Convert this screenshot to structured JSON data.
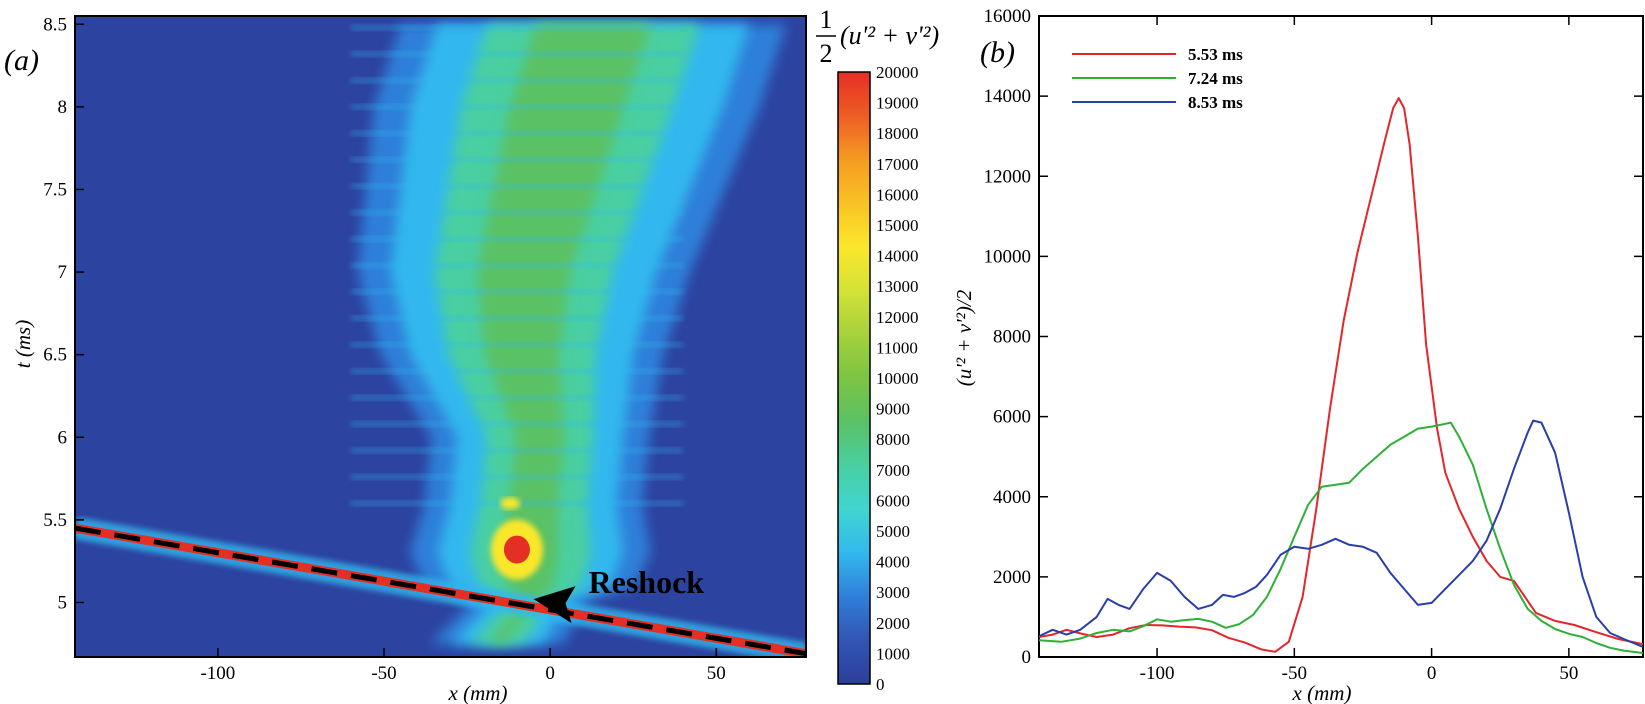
{
  "chart_data": [
    {
      "type": "heatmap",
      "panel_label": "(a)",
      "xlabel": "x (mm)",
      "ylabel": "t (ms)",
      "xlim": [
        -143,
        77
      ],
      "ylim": [
        4.67,
        8.55
      ],
      "x_ticks": [
        -100,
        -50,
        0,
        50
      ],
      "x_tick_labels": [
        "-100",
        "-50",
        "0",
        "50"
      ],
      "y_ticks": [
        5,
        5.5,
        6,
        6.5,
        7,
        7.5,
        8,
        8.5
      ],
      "y_tick_labels": [
        "5",
        "5.5",
        "6",
        "6.5",
        "7",
        "7.5",
        "8",
        "8.5"
      ],
      "colorbar": {
        "title_prefix": "1",
        "title_denominator": "2",
        "title_expr": "(u'² + v'²)",
        "min": 0,
        "max": 20000,
        "tick_labels": [
          "0",
          "1000",
          "2000",
          "3000",
          "4000",
          "5000",
          "6000",
          "7000",
          "8000",
          "9000",
          "10000",
          "11000",
          "12000",
          "13000",
          "14000",
          "15000",
          "16000",
          "17000",
          "18000",
          "19000",
          "20000"
        ],
        "colors": [
          "#2c3e99",
          "#3355b5",
          "#2f7fd9",
          "#33b8ee",
          "#3fd6d0",
          "#49cfa1",
          "#5ac165",
          "#7cc443",
          "#a6d13c",
          "#d4e236",
          "#fbe72c",
          "#f9c224",
          "#f59b22",
          "#ee5d24",
          "#e52f25"
        ]
      },
      "shock_line": {
        "x": [
          -143,
          77
        ],
        "t": [
          5.45,
          4.69
        ]
      },
      "annotation": {
        "text": "Reshock",
        "x": -5,
        "t": 5.02
      },
      "mixing_zone": {
        "t": [
          4.75,
          5.0,
          5.1,
          5.3,
          5.6,
          6.0,
          6.5,
          7.0,
          7.5,
          8.0,
          8.5
        ],
        "left": [
          -30,
          -18,
          -30,
          -34,
          -30,
          -28,
          -42,
          -48,
          -45,
          -42,
          -34
        ],
        "right": [
          -2,
          5,
          18,
          22,
          20,
          22,
          25,
          32,
          42,
          52,
          60
        ]
      }
    },
    {
      "type": "line",
      "panel_label": "(b)",
      "xlabel": "x (mm)",
      "ylabel": "(u'² + v'²)/2",
      "xlim": [
        -143,
        77
      ],
      "ylim": [
        0,
        16000
      ],
      "x_ticks": [
        -100,
        -50,
        0,
        50
      ],
      "x_tick_labels": [
        "-100",
        "-50",
        "0",
        "50"
      ],
      "y_ticks": [
        0,
        2000,
        4000,
        6000,
        8000,
        10000,
        12000,
        14000,
        16000
      ],
      "y_tick_labels": [
        "0",
        "2000",
        "4000",
        "6000",
        "8000",
        "10000",
        "12000",
        "14000",
        "16000"
      ],
      "legend_position": "top-left",
      "series": [
        {
          "name": "5.53 ms",
          "color": "#e3262a",
          "x": [
            -143,
            -138,
            -133,
            -128,
            -122,
            -116,
            -110,
            -104,
            -98,
            -92,
            -86,
            -80,
            -74,
            -68,
            -62,
            -57,
            -52,
            -47,
            -42,
            -37,
            -32,
            -27,
            -22,
            -17,
            -14,
            -12,
            -10,
            -8,
            -5,
            -2,
            2,
            5,
            10,
            15,
            20,
            25,
            30,
            33,
            38,
            45,
            52,
            60,
            68,
            77
          ],
          "y": [
            500,
            560,
            680,
            590,
            500,
            560,
            720,
            800,
            790,
            760,
            740,
            670,
            480,
            360,
            190,
            130,
            380,
            1500,
            3700,
            6200,
            8400,
            10100,
            11500,
            12900,
            13700,
            13950,
            13700,
            12800,
            10500,
            7800,
            5700,
            4600,
            3700,
            3000,
            2400,
            2000,
            1900,
            1600,
            1100,
            900,
            800,
            620,
            450,
            320
          ]
        },
        {
          "name": "7.24 ms",
          "color": "#2eb037",
          "x": [
            -143,
            -135,
            -128,
            -122,
            -116,
            -110,
            -105,
            -100,
            -95,
            -90,
            -85,
            -80,
            -75,
            -70,
            -65,
            -60,
            -55,
            -50,
            -45,
            -40,
            -35,
            -30,
            -25,
            -20,
            -15,
            -10,
            -5,
            0,
            5,
            7,
            10,
            15,
            20,
            25,
            30,
            35,
            40,
            45,
            50,
            55,
            60,
            65,
            70,
            77
          ],
          "y": [
            420,
            380,
            460,
            600,
            680,
            640,
            770,
            940,
            880,
            920,
            950,
            880,
            730,
            820,
            1050,
            1500,
            2200,
            3000,
            3800,
            4250,
            4300,
            4350,
            4700,
            5000,
            5300,
            5500,
            5700,
            5750,
            5820,
            5850,
            5500,
            4800,
            3700,
            2700,
            1800,
            1200,
            900,
            700,
            580,
            500,
            350,
            230,
            160,
            100
          ]
        },
        {
          "name": "8.53 ms",
          "color": "#2a3ea8",
          "x": [
            -143,
            -138,
            -133,
            -128,
            -122,
            -118,
            -114,
            -110,
            -105,
            -100,
            -95,
            -90,
            -85,
            -80,
            -76,
            -72,
            -68,
            -64,
            -60,
            -55,
            -50,
            -45,
            -40,
            -35,
            -30,
            -25,
            -20,
            -15,
            -10,
            -5,
            0,
            5,
            10,
            15,
            20,
            25,
            30,
            35,
            37,
            40,
            45,
            50,
            55,
            60,
            65,
            70,
            77
          ],
          "y": [
            520,
            680,
            560,
            680,
            1000,
            1450,
            1300,
            1200,
            1700,
            2100,
            1900,
            1500,
            1200,
            1300,
            1550,
            1500,
            1600,
            1750,
            2050,
            2550,
            2750,
            2700,
            2800,
            2950,
            2800,
            2750,
            2600,
            2100,
            1700,
            1300,
            1350,
            1700,
            2050,
            2400,
            2900,
            3700,
            4700,
            5600,
            5900,
            5850,
            5100,
            3600,
            2000,
            1000,
            600,
            450,
            250
          ]
        }
      ]
    }
  ]
}
